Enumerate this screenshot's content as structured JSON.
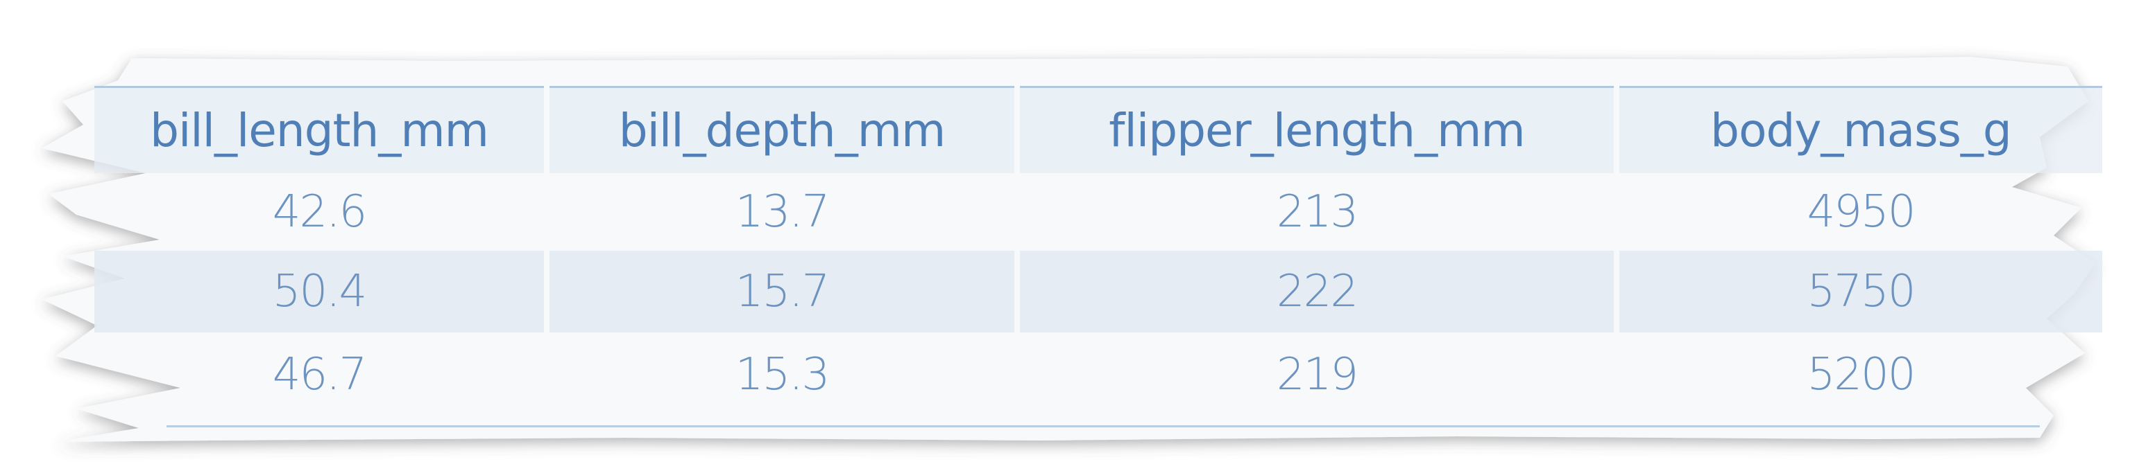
{
  "chart_data": {
    "type": "table",
    "columns": [
      "bill_length_mm",
      "bill_depth_mm",
      "flipper_length_mm",
      "body_mass_g"
    ],
    "rows": [
      [
        "42.6",
        "13.7",
        "213",
        "4950"
      ],
      [
        "50.4",
        "15.7",
        "222",
        "5750"
      ],
      [
        "46.7",
        "15.3",
        "219",
        "5200"
      ]
    ]
  },
  "colors": {
    "text": "#5b86b8",
    "header_band": "#e4ecf4",
    "alt_row_band": "#e3eaf2",
    "paper": "#f7f9fb"
  }
}
